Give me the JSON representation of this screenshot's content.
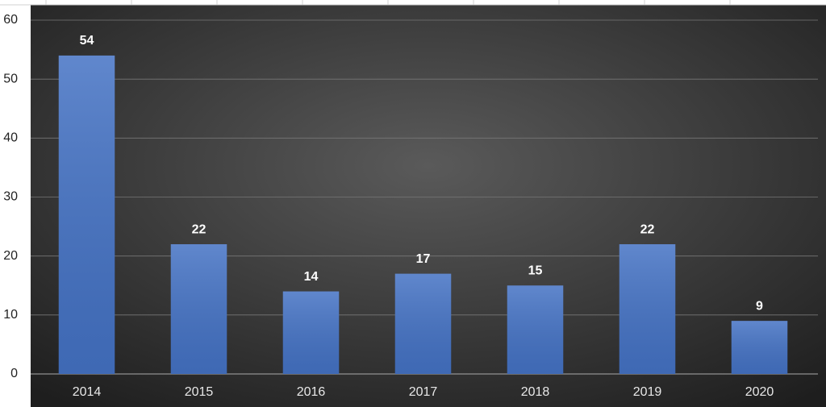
{
  "chart_data": {
    "type": "bar",
    "categories": [
      "2014",
      "2015",
      "2016",
      "2017",
      "2018",
      "2019",
      "2020"
    ],
    "values": [
      54,
      22,
      14,
      17,
      15,
      22,
      9
    ],
    "color": "#4472c4",
    "ylim": [
      0,
      60
    ],
    "yticks": [
      0,
      10,
      20,
      30,
      40,
      50,
      60
    ],
    "grid": true
  }
}
